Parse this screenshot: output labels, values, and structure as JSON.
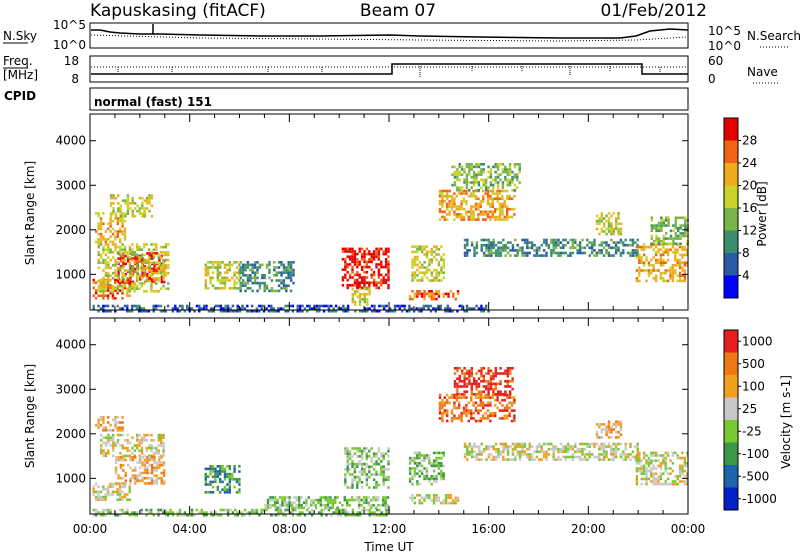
{
  "header": {
    "station": "Kapuskasing (fitACF)",
    "beam": "Beam 07",
    "date": "01/Feb/2012"
  },
  "noise_panel": {
    "left_label": "N.Sky",
    "left_ticks": [
      "10^5",
      "10^0"
    ],
    "right_label": "N.Search",
    "right_ticks": [
      "10^5",
      "10^0"
    ]
  },
  "freq_panel": {
    "left_label_line1": "Freq.",
    "left_label_line2": "[MHz]",
    "left_ticks": [
      "18",
      "8"
    ],
    "right_label": "Nave",
    "right_ticks": [
      "60",
      "0"
    ]
  },
  "cpid_panel": {
    "label": "CPID",
    "mode": "normal (fast) 151"
  },
  "colors": {
    "power_scale": [
      "#0000ff",
      "#2a5aa8",
      "#3c8c6e",
      "#78b446",
      "#c8d228",
      "#f0aa1e",
      "#f06414",
      "#e60000"
    ],
    "velocity_scale": [
      "#0020c8",
      "#1e64aa",
      "#3c9646",
      "#78c832",
      "#c8c8c8",
      "#f0a01e",
      "#f07814",
      "#e61e1e"
    ]
  },
  "chart_data": [
    {
      "type": "heatmap",
      "title": "Power",
      "ylabel": "Slant Range [km]",
      "xlabel": "",
      "ylim": [
        200,
        4600
      ],
      "xlim": [
        "00:00",
        "24:00"
      ],
      "y_ticks": [
        "4000",
        "3000",
        "2000",
        "1000"
      ],
      "colorbar_label": "Power [dB]",
      "colorbar_ticks": [
        "28",
        "24",
        "20",
        "16",
        "12",
        "8",
        "4"
      ],
      "regions": [
        {
          "t0": 0.1,
          "t1": 1.6,
          "r0": 450,
          "r1": 900,
          "level": 6
        },
        {
          "t0": 0.2,
          "t1": 1.4,
          "r0": 1700,
          "r1": 2400,
          "level": 5
        },
        {
          "t0": 0.8,
          "t1": 2.5,
          "r0": 2300,
          "r1": 2800,
          "level": 4
        },
        {
          "t0": 1.1,
          "t1": 3.0,
          "r0": 850,
          "r1": 1500,
          "level": 7
        },
        {
          "t0": 0.3,
          "t1": 3.1,
          "r0": 600,
          "r1": 1700,
          "level": 4
        },
        {
          "t0": 4.6,
          "t1": 6.0,
          "r0": 700,
          "r1": 1300,
          "level": 4
        },
        {
          "t0": 6.0,
          "t1": 8.2,
          "r0": 600,
          "r1": 1300,
          "level": 2
        },
        {
          "t0": 10.1,
          "t1": 12.0,
          "r0": 700,
          "r1": 1600,
          "level": 7
        },
        {
          "t0": 10.5,
          "t1": 11.2,
          "r0": 300,
          "r1": 700,
          "level": 4
        },
        {
          "t0": 12.8,
          "t1": 14.8,
          "r0": 450,
          "r1": 650,
          "level": 6
        },
        {
          "t0": 12.9,
          "t1": 14.2,
          "r0": 850,
          "r1": 1650,
          "level": 4
        },
        {
          "t0": 14.0,
          "t1": 17.0,
          "r0": 2200,
          "r1": 2900,
          "level": 5
        },
        {
          "t0": 14.5,
          "t1": 17.2,
          "r0": 2900,
          "r1": 3500,
          "level": 3
        },
        {
          "t0": 15.0,
          "t1": 22.0,
          "r0": 1400,
          "r1": 1800,
          "level": 2
        },
        {
          "t0": 20.3,
          "t1": 21.3,
          "r0": 1900,
          "r1": 2400,
          "level": 4
        },
        {
          "t0": 21.9,
          "t1": 24.0,
          "r0": 850,
          "r1": 1700,
          "level": 5
        },
        {
          "t0": 22.5,
          "t1": 24.0,
          "r0": 1700,
          "r1": 2300,
          "level": 3
        },
        {
          "t0": 0.1,
          "t1": 12.0,
          "r0": 200,
          "r1": 320,
          "level": 1
        },
        {
          "t0": 12.0,
          "t1": 16.0,
          "r0": 200,
          "r1": 320,
          "level": 1
        }
      ]
    },
    {
      "type": "heatmap",
      "title": "Velocity",
      "ylabel": "Slant Range [km]",
      "xlabel": "Time UT",
      "ylim": [
        200,
        4600
      ],
      "xlim": [
        "00:00",
        "24:00"
      ],
      "x_ticks": [
        "00:00",
        "04:00",
        "08:00",
        "12:00",
        "16:00",
        "20:00",
        "00:00"
      ],
      "y_ticks": [
        "4000",
        "3000",
        "2000",
        "1000"
      ],
      "colorbar_label": "Velocity [m s-1]",
      "colorbar_ticks": [
        "1000",
        "500",
        "100",
        "25",
        "-25",
        "-100",
        "-500",
        "-1000"
      ],
      "regions": [
        {
          "t0": 0.1,
          "t1": 1.6,
          "r0": 500,
          "r1": 900,
          "level": 4
        },
        {
          "t0": 0.4,
          "t1": 3.0,
          "r0": 1500,
          "r1": 2000,
          "level": 4
        },
        {
          "t0": 1.0,
          "t1": 3.0,
          "r0": 900,
          "r1": 1500,
          "level": 5
        },
        {
          "t0": 0.2,
          "t1": 1.3,
          "r0": 2100,
          "r1": 2400,
          "level": 5
        },
        {
          "t0": 4.6,
          "t1": 6.0,
          "r0": 700,
          "r1": 1300,
          "level": 2
        },
        {
          "t0": 10.2,
          "t1": 12.0,
          "r0": 800,
          "r1": 1700,
          "level": 3
        },
        {
          "t0": 12.8,
          "t1": 14.2,
          "r0": 850,
          "r1": 1600,
          "level": 3
        },
        {
          "t0": 12.8,
          "t1": 14.8,
          "r0": 450,
          "r1": 650,
          "level": 4
        },
        {
          "t0": 14.0,
          "t1": 17.0,
          "r0": 2300,
          "r1": 2900,
          "level": 6
        },
        {
          "t0": 14.6,
          "t1": 17.0,
          "r0": 2900,
          "r1": 3500,
          "level": 7
        },
        {
          "t0": 15.0,
          "t1": 22.0,
          "r0": 1400,
          "r1": 1800,
          "level": 4
        },
        {
          "t0": 20.3,
          "t1": 21.3,
          "r0": 1900,
          "r1": 2300,
          "level": 5
        },
        {
          "t0": 21.9,
          "t1": 24.0,
          "r0": 850,
          "r1": 1600,
          "level": 4
        },
        {
          "t0": 0.1,
          "t1": 12.0,
          "r0": 200,
          "r1": 320,
          "level": 3
        },
        {
          "t0": 7.0,
          "t1": 12.0,
          "r0": 320,
          "r1": 600,
          "level": 3
        }
      ]
    }
  ]
}
